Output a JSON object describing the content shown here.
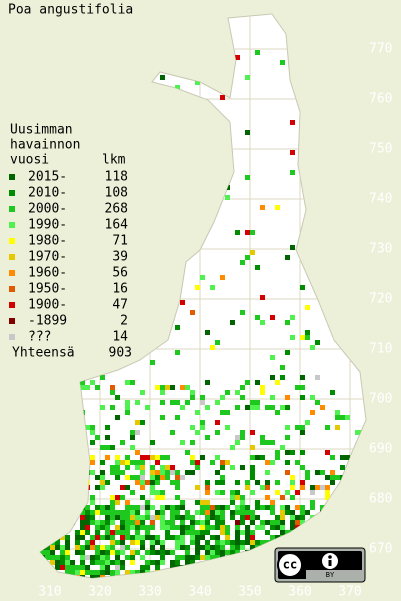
{
  "title": "Poa angustifolia",
  "legend": {
    "heading": [
      "Uusimman",
      "havainnon",
      "vuosi"
    ],
    "count_heading": "lkm",
    "entries": [
      {
        "label": "2015-",
        "count": 118,
        "color": "#006400"
      },
      {
        "label": "2010-",
        "count": 108,
        "color": "#008c00"
      },
      {
        "label": "2000-",
        "count": 268,
        "color": "#1ec81e"
      },
      {
        "label": "1990-",
        "count": 164,
        "color": "#50f050"
      },
      {
        "label": "1980-",
        "count": 71,
        "color": "#ffff00"
      },
      {
        "label": "1970-",
        "count": 39,
        "color": "#e6c800"
      },
      {
        "label": "1960-",
        "count": 56,
        "color": "#ff8c00"
      },
      {
        "label": "1950-",
        "count": 16,
        "color": "#e05a00"
      },
      {
        "label": "1900-",
        "count": 47,
        "color": "#d20000"
      },
      {
        "label": "-1899",
        "count": 2,
        "color": "#800000"
      },
      {
        "label": "???",
        "count": 14,
        "color": "#c8c8c8"
      }
    ],
    "total_label": "Yhteensä",
    "total": 903
  },
  "axes": {
    "yticks": [
      770,
      760,
      750,
      740,
      730,
      720,
      710,
      700,
      690,
      680,
      670
    ],
    "xticks": [
      310,
      320,
      330,
      340,
      350,
      360,
      370
    ]
  },
  "badge": {
    "cc": "cc",
    "by": "BY"
  }
}
